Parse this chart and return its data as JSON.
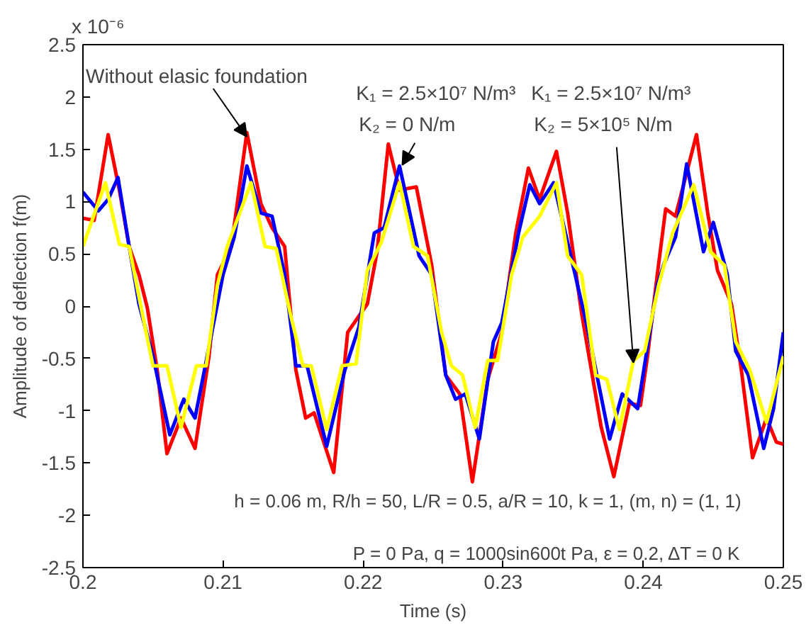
{
  "chart_data": {
    "type": "line",
    "xlabel": "Time (s)",
    "ylabel": "Amplitude of deflection f(m)",
    "xlim": [
      0.2,
      0.25
    ],
    "ylim": [
      -2.5,
      2.5
    ],
    "xticks": [
      0.2,
      0.21,
      0.22,
      0.23,
      0.24,
      0.25
    ],
    "yticks": [
      -2.5,
      -2,
      -1.5,
      -1,
      -0.5,
      0,
      0.5,
      1,
      1.5,
      2,
      2.5
    ],
    "marker": "none",
    "line_style": "solid",
    "series": [
      {
        "color": "#ff0000",
        "x": [
          0.2,
          0.2008,
          0.2018,
          0.2026,
          0.2033,
          0.204,
          0.2046,
          0.2053,
          0.206,
          0.207,
          0.208,
          0.209,
          0.2096,
          0.2106,
          0.2117,
          0.2127,
          0.2135,
          0.2144,
          0.2152,
          0.2159,
          0.2165,
          0.2179,
          0.2189,
          0.2203,
          0.221,
          0.2218,
          0.2226,
          0.2238,
          0.2249,
          0.2259,
          0.2269,
          0.2278,
          0.2289,
          0.2299,
          0.2309,
          0.2318,
          0.2326,
          0.2338,
          0.2346,
          0.2356,
          0.237,
          0.2379,
          0.239,
          0.2398,
          0.2403,
          0.241,
          0.2416,
          0.2423,
          0.2438,
          0.2446,
          0.2453,
          0.2463,
          0.247,
          0.2478,
          0.2488,
          0.2495,
          0.25
        ],
        "values": [
          0.84,
          0.82,
          1.64,
          1.11,
          0.57,
          0.3,
          -0.02,
          -0.61,
          -1.41,
          -1.07,
          -1.36,
          -0.48,
          0.3,
          0.57,
          1.66,
          0.98,
          0.75,
          0.57,
          -0.61,
          -1.07,
          -1.02,
          -1.59,
          -0.25,
          0.02,
          0.52,
          1.55,
          1.11,
          1.14,
          0.39,
          -0.66,
          -0.84,
          -1.68,
          -0.7,
          -0.25,
          0.7,
          1.32,
          1.02,
          1.48,
          0.89,
          -0.07,
          -1.16,
          -1.63,
          -0.93,
          -0.95,
          -0.48,
          0.3,
          0.93,
          0.86,
          1.64,
          0.89,
          0.34,
          0.02,
          -0.61,
          -1.45,
          -1.07,
          -1.3,
          -1.32
        ]
      },
      {
        "color": "#0000ff",
        "x": [
          0.2,
          0.2011,
          0.2018,
          0.2025,
          0.2033,
          0.204,
          0.205,
          0.2062,
          0.2072,
          0.208,
          0.209,
          0.21,
          0.2108,
          0.2117,
          0.2127,
          0.2135,
          0.2144,
          0.2152,
          0.216,
          0.2174,
          0.2187,
          0.2197,
          0.2208,
          0.2215,
          0.2226,
          0.224,
          0.2249,
          0.2259,
          0.2266,
          0.2273,
          0.2283,
          0.2293,
          0.2299,
          0.2311,
          0.2319,
          0.2326,
          0.2336,
          0.2346,
          0.236,
          0.2376,
          0.2385,
          0.2396,
          0.241,
          0.2415,
          0.2423,
          0.2431,
          0.2443,
          0.245,
          0.246,
          0.2466,
          0.2475,
          0.2486,
          0.2493,
          0.25
        ],
        "values": [
          1.09,
          0.91,
          1.02,
          1.23,
          0.57,
          0.02,
          -0.48,
          -1.23,
          -0.89,
          -1.07,
          -0.39,
          0.3,
          0.66,
          1.34,
          0.89,
          0.86,
          0.3,
          -0.57,
          -0.57,
          -1.34,
          -0.61,
          -0.2,
          0.7,
          0.75,
          1.34,
          0.48,
          0.3,
          -0.66,
          -0.89,
          -0.84,
          -1.27,
          -0.34,
          -0.16,
          0.7,
          1.16,
          0.98,
          1.18,
          0.61,
          -0.2,
          -1.27,
          -0.84,
          -0.98,
          0.2,
          0.41,
          0.66,
          1.36,
          0.52,
          0.8,
          0.3,
          -0.43,
          -0.66,
          -1.36,
          -0.98,
          -0.25
        ]
      },
      {
        "color": "#ffff00",
        "x": [
          0.2,
          0.2016,
          0.2026,
          0.2033,
          0.2041,
          0.205,
          0.206,
          0.207,
          0.2081,
          0.2088,
          0.2096,
          0.2103,
          0.212,
          0.213,
          0.2138,
          0.2148,
          0.2157,
          0.2163,
          0.2174,
          0.2185,
          0.2195,
          0.2203,
          0.2213,
          0.2226,
          0.2236,
          0.2246,
          0.2256,
          0.2263,
          0.2271,
          0.228,
          0.2289,
          0.2296,
          0.2306,
          0.2314,
          0.2326,
          0.2338,
          0.2346,
          0.2356,
          0.2366,
          0.2374,
          0.2383,
          0.2393,
          0.2401,
          0.2411,
          0.2421,
          0.2436,
          0.2448,
          0.2458,
          0.2466,
          0.2476,
          0.2488,
          0.25
        ],
        "values": [
          0.57,
          1.18,
          0.59,
          0.57,
          0.02,
          -0.57,
          -0.57,
          -1.16,
          -0.57,
          -0.57,
          0.2,
          0.57,
          1.18,
          0.57,
          0.55,
          -0.07,
          -0.57,
          -0.57,
          -1.18,
          -0.57,
          -0.55,
          0.34,
          0.61,
          1.18,
          0.57,
          0.48,
          -0.25,
          -0.57,
          -0.66,
          -1.16,
          -0.52,
          -0.52,
          0.3,
          0.66,
          0.86,
          1.18,
          0.48,
          0.3,
          -0.66,
          -0.7,
          -1.18,
          -0.52,
          -0.43,
          0.2,
          0.7,
          1.16,
          0.52,
          0.39,
          -0.34,
          -0.61,
          -1.11,
          -0.48
        ]
      }
    ],
    "annotations": [
      "x 10⁻⁶",
      {
        "text": "Without elasic foundation",
        "x": 0.2117,
        "y": 1.62
      },
      {
        "text": "K₁ = 2.5×10⁷ N/m³\nK₂ = 0 N/m",
        "x": 0.2228,
        "y": 1.35
      },
      {
        "text": "K₁ = 2.5×10⁷ N/m³\nK₂ = 5×10⁵ N/m",
        "x": 0.2393,
        "y": -0.54
      },
      "h = 0.06 m, R/h = 50, L/R = 0.5, a/R = 10, k = 1, (m, n) = (1, 1)",
      "P = 0 Pa, q = 1000sin600t Pa, ε = 0.2, ΔT = 0 K"
    ]
  }
}
